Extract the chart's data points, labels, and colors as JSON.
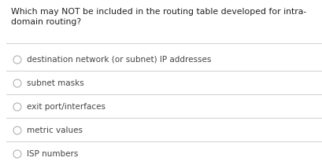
{
  "question_line1": "Which may NOT be included in the routing table developed for intra-",
  "question_line2": "domain routing?",
  "options": [
    "destination network (or subnet) IP addresses",
    "subnet masks",
    "exit port/interfaces",
    "metric values",
    "ISP numbers"
  ],
  "background_color": "#ffffff",
  "text_color": "#222222",
  "option_text_color": "#444444",
  "line_color": "#d0d0d0",
  "circle_edge_color": "#b0b0b0",
  "question_fontsize": 7.8,
  "option_fontsize": 7.5,
  "fig_width": 4.1,
  "fig_height": 2.1,
  "dpi": 100
}
